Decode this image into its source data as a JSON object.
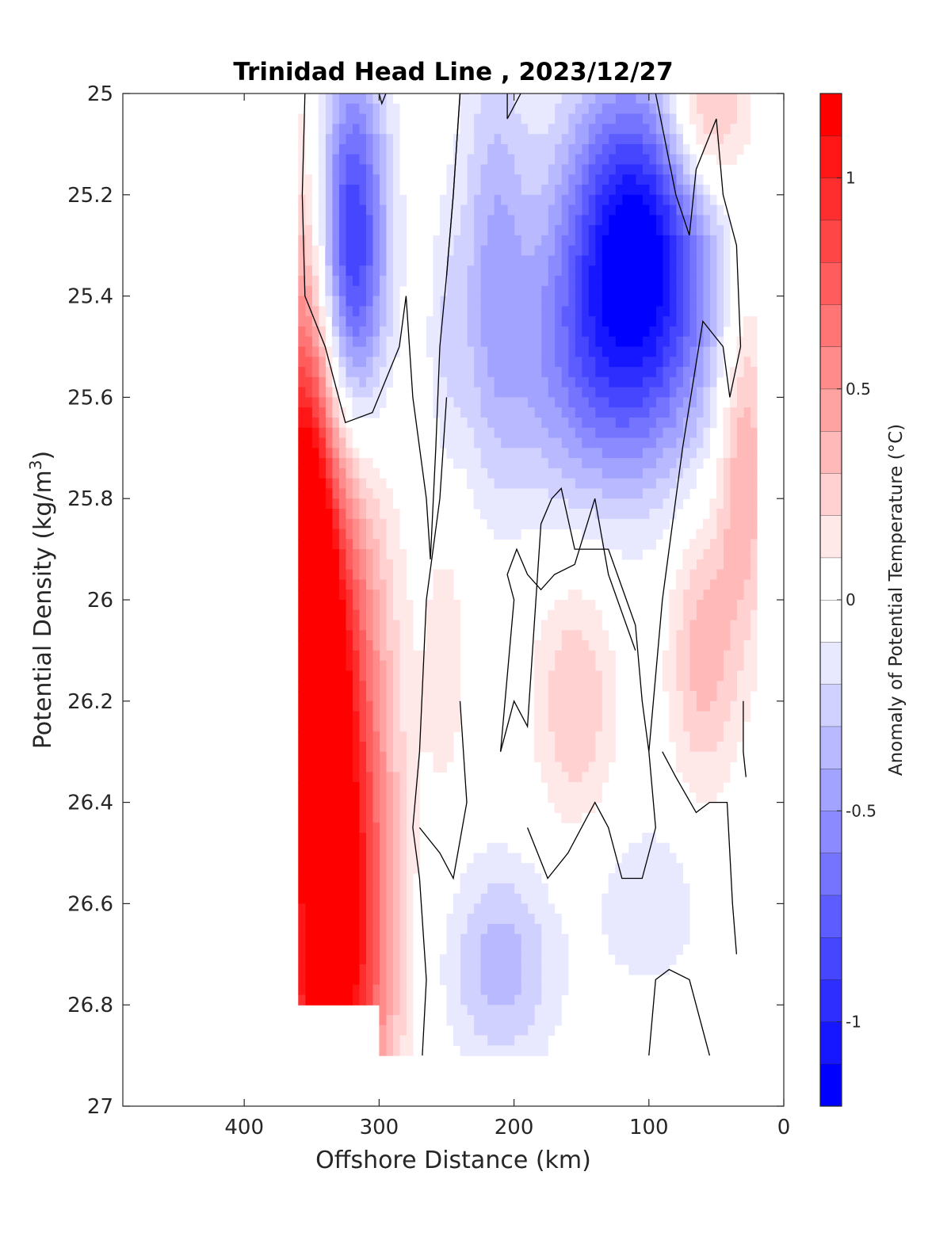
{
  "chart_data": {
    "type": "heatmap",
    "title": "Trinidad Head Line , 2023/12/27",
    "xlabel": "Offshore Distance (km)",
    "ylabel_main": "Potential Density (kg/m",
    "ylabel_sup": "3",
    "ylabel_close": ")",
    "colorbar_label": "Anomaly of Potential Temperature (°C)",
    "xlim": [
      490,
      0
    ],
    "ylim": [
      25,
      27
    ],
    "x_reversed": true,
    "y_reversed": true,
    "x_ticks": [
      400,
      300,
      200,
      100,
      0
    ],
    "y_ticks": [
      25,
      25.2,
      25.4,
      25.6,
      25.8,
      26,
      26.2,
      26.4,
      26.6,
      26.8,
      27
    ],
    "x_tick_labels": [
      "400",
      "300",
      "200",
      "100",
      "0"
    ],
    "y_tick_labels": [
      "25",
      "25.2",
      "25.4",
      "25.6",
      "25.8",
      "26",
      "26.2",
      "26.4",
      "26.6",
      "26.8",
      "27"
    ],
    "colorbar_range": [
      -1.2,
      1.2
    ],
    "colorbar_ticks": [
      1,
      0.5,
      0,
      -0.5,
      -1
    ],
    "colorbar_tick_labels": [
      "1",
      "0.5",
      "0",
      "-0.5",
      "-1"
    ],
    "colorbar_levels": 24,
    "colormap": "blue-white-red",
    "colors": {
      "positive": "#ff0000",
      "negative": "#0000ff",
      "neutral": "#ffffff",
      "contour": "#000000"
    },
    "data_extent": {
      "x_min": 20,
      "x_max": 360,
      "y_min": 25,
      "y_max": 26.9
    },
    "anomaly_features": [
      {
        "x": 345,
        "y": 26.15,
        "value": 1.2,
        "sx": 30,
        "sy": 0.35
      },
      {
        "x": 355,
        "y": 25.85,
        "value": 0.8,
        "sx": 15,
        "sy": 0.45
      },
      {
        "x": 325,
        "y": 26.6,
        "value": 0.7,
        "sx": 25,
        "sy": 0.25
      },
      {
        "x": 340,
        "y": 26.85,
        "value": 0.6,
        "sx": 30,
        "sy": 0.15
      },
      {
        "x": 320,
        "y": 25.3,
        "value": -0.95,
        "sx": 18,
        "sy": 0.25
      },
      {
        "x": 110,
        "y": 25.27,
        "value": -1.05,
        "sx": 38,
        "sy": 0.22
      },
      {
        "x": 130,
        "y": 25.55,
        "value": -0.55,
        "sx": 55,
        "sy": 0.2
      },
      {
        "x": 215,
        "y": 25.3,
        "value": -0.35,
        "sx": 18,
        "sy": 0.3
      },
      {
        "x": 60,
        "y": 25.05,
        "value": 0.5,
        "sx": 22,
        "sy": 0.12
      },
      {
        "x": 30,
        "y": 25.7,
        "value": 0.45,
        "sx": 14,
        "sy": 0.25
      },
      {
        "x": 60,
        "y": 26.1,
        "value": 0.35,
        "sx": 18,
        "sy": 0.2
      },
      {
        "x": 155,
        "y": 26.2,
        "value": 0.3,
        "sx": 22,
        "sy": 0.18
      },
      {
        "x": 250,
        "y": 26.1,
        "value": 0.15,
        "sx": 12,
        "sy": 0.25
      },
      {
        "x": 210,
        "y": 26.72,
        "value": -0.35,
        "sx": 30,
        "sy": 0.15
      },
      {
        "x": 100,
        "y": 26.6,
        "value": -0.2,
        "sx": 30,
        "sy": 0.12
      },
      {
        "x": 250,
        "y": 25.5,
        "value": -0.15,
        "sx": 10,
        "sy": 0.2
      }
    ],
    "zero_contours": [
      [
        [
          355,
          25
        ],
        [
          357,
          25.2
        ],
        [
          355,
          25.4
        ],
        [
          340,
          25.5
        ],
        [
          325,
          25.65
        ],
        [
          305,
          25.63
        ],
        [
          285,
          25.5
        ],
        [
          280,
          25.4
        ],
        [
          275,
          25.6
        ],
        [
          265,
          25.8
        ],
        [
          262,
          25.92
        ],
        [
          258,
          25.7
        ],
        [
          255,
          25.5
        ],
        [
          250,
          25.36
        ],
        [
          245,
          25.2
        ],
        [
          240,
          25
        ],
        [
          233,
          25
        ]
      ],
      [
        [
          250,
          25.36
        ],
        [
          245,
          25.2
        ],
        [
          240,
          25
        ]
      ],
      [
        [
          300,
          25
        ],
        [
          298,
          25.02
        ],
        [
          295,
          25
        ]
      ],
      [
        [
          205,
          25
        ],
        [
          205,
          25.05
        ],
        [
          195,
          25
        ]
      ],
      [
        [
          95,
          25
        ],
        [
          80,
          25.2
        ],
        [
          70,
          25.28
        ],
        [
          65,
          25.15
        ],
        [
          50,
          25.05
        ],
        [
          45,
          25.2
        ],
        [
          35,
          25.3
        ],
        [
          32,
          25.5
        ],
        [
          40,
          25.6
        ],
        [
          45,
          25.5
        ],
        [
          60,
          25.45
        ],
        [
          75,
          25.7
        ],
        [
          90,
          26.0
        ],
        [
          100,
          26.3
        ],
        [
          105,
          26.2
        ],
        [
          110,
          26.05
        ],
        [
          130,
          25.9
        ],
        [
          155,
          25.9
        ],
        [
          165,
          25.78
        ],
        [
          172,
          25.8
        ],
        [
          180,
          25.85
        ],
        [
          190,
          26.25
        ],
        [
          200,
          26.2
        ],
        [
          210,
          26.3
        ],
        [
          200,
          26.0
        ],
        [
          205,
          25.95
        ],
        [
          198,
          25.9
        ],
        [
          190,
          25.95
        ],
        [
          180,
          25.98
        ],
        [
          170,
          25.95
        ],
        [
          155,
          25.93
        ],
        [
          140,
          25.8
        ],
        [
          130,
          25.95
        ],
        [
          110,
          26.1
        ]
      ],
      [
        [
          250,
          25.6
        ],
        [
          255,
          25.8
        ],
        [
          265,
          26.0
        ],
        [
          270,
          26.3
        ],
        [
          275,
          26.45
        ],
        [
          270,
          26.55
        ],
        [
          265,
          26.75
        ],
        [
          268,
          26.9
        ]
      ],
      [
        [
          240,
          26.2
        ],
        [
          235,
          26.4
        ],
        [
          245,
          26.55
        ],
        [
          255,
          26.5
        ],
        [
          270,
          26.45
        ]
      ],
      [
        [
          100,
          26.3
        ],
        [
          95,
          26.45
        ],
        [
          105,
          26.55
        ],
        [
          120,
          26.55
        ],
        [
          130,
          26.45
        ],
        [
          140,
          26.4
        ],
        [
          160,
          26.5
        ],
        [
          175,
          26.55
        ],
        [
          190,
          26.45
        ]
      ],
      [
        [
          90,
          26.3
        ],
        [
          80,
          26.35
        ],
        [
          65,
          26.42
        ],
        [
          55,
          26.4
        ],
        [
          42,
          26.4
        ],
        [
          38,
          26.6
        ],
        [
          35,
          26.7
        ]
      ],
      [
        [
          100,
          26.9
        ],
        [
          95,
          26.75
        ],
        [
          85,
          26.73
        ],
        [
          70,
          26.75
        ],
        [
          60,
          26.85
        ],
        [
          55,
          26.9
        ]
      ],
      [
        [
          30,
          26.2
        ],
        [
          30,
          26.3
        ],
        [
          28,
          26.35
        ]
      ]
    ]
  }
}
